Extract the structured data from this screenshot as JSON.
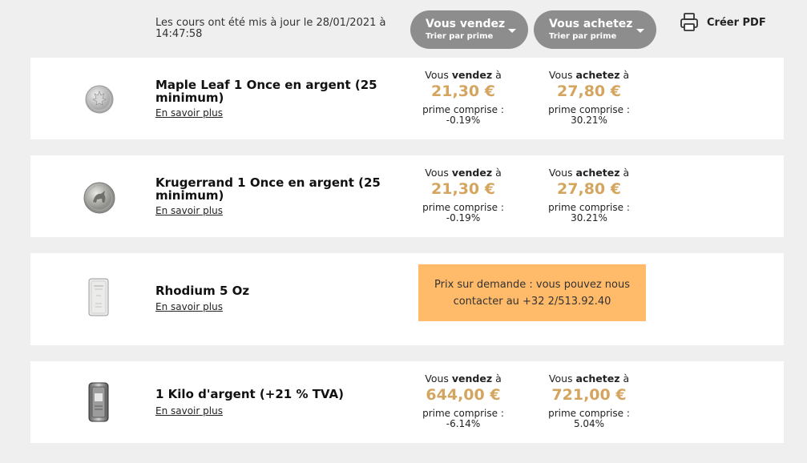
{
  "header": {
    "update_text": "Les cours ont été mis à jour le 28/01/2021 à 14:47:58",
    "sell_sort": {
      "label": "Vous vendez",
      "sub": "Trier par prime"
    },
    "buy_sort": {
      "label": "Vous achetez",
      "sub": "Trier par prime"
    },
    "pdf_label": "Créer PDF"
  },
  "labels": {
    "sell_prefix": "Vous ",
    "sell_bold": "vendez",
    "buy_prefix": "Vous ",
    "buy_bold": "achetez",
    "suffix": " à",
    "prime": "prime comprise :",
    "more": "En savoir plus"
  },
  "products": [
    {
      "name": "Maple Leaf 1 Once en argent (25 minimum)",
      "sell_price": "21,30 €",
      "sell_prime": "-0.19%",
      "buy_price": "27,80 €",
      "buy_prime": "30.21%",
      "icon": "maple-leaf-coin-icon"
    },
    {
      "name": "Krugerrand 1 Once en argent (25 minimum)",
      "sell_price": "21,30 €",
      "sell_prime": "-0.19%",
      "buy_price": "27,80 €",
      "buy_prime": "30.21%",
      "icon": "krugerrand-coin-icon"
    },
    {
      "name": "Rhodium 5 Oz",
      "on_request": "Prix sur demande : vous pouvez nous contacter au +32 2/513.92.40",
      "icon": "rhodium-bar-icon"
    },
    {
      "name": "1 Kilo d'argent (+21 % TVA)",
      "sell_price": "644,00 €",
      "sell_prime": "-6.14%",
      "buy_price": "721,00 €",
      "buy_prime": "5.04%",
      "icon": "silver-kilo-bar-icon"
    }
  ],
  "colors": {
    "accent": "#d4a55e",
    "button": "#8d8d8d",
    "on_request_bg": "#ffbb6a",
    "page_bg": "#efefef"
  }
}
